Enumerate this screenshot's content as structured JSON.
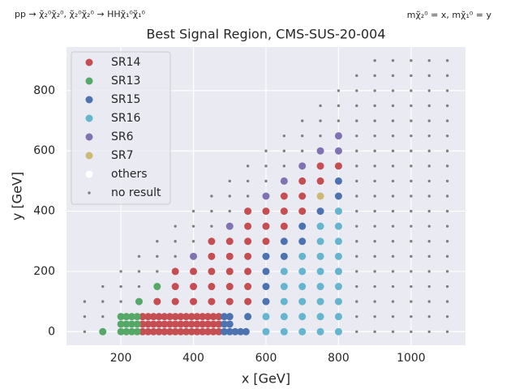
{
  "chart_data": {
    "type": "scatter",
    "title": "Best Signal Region, CMS-SUS-20-004",
    "annotation_left": "pp → χ̃₂⁰χ̃₂⁰, χ̃₂⁰χ̃₂⁰ → HHχ̃₁⁰χ̃₁⁰",
    "annotation_right": "mχ̃₂⁰ = x, mχ̃₁⁰ = y",
    "x_label": "x [GeV]",
    "y_label": "y [GeV]",
    "xlim": [
      50,
      1150
    ],
    "ylim": [
      -45,
      945
    ],
    "xticks": [
      200,
      400,
      600,
      800,
      1000
    ],
    "yticks": [
      0,
      200,
      400,
      600,
      800
    ],
    "grid": true,
    "legend": "upper left",
    "series": [
      {
        "name": "SR14",
        "color": "#c44e52",
        "marker_size": 4.5,
        "x": [
          300,
          350,
          400,
          450,
          500,
          550,
          350,
          400,
          450,
          500,
          550,
          350,
          400,
          450,
          500,
          550,
          450,
          500,
          550,
          450,
          500,
          550,
          600,
          550,
          600,
          650,
          550,
          600,
          650,
          700,
          650,
          700,
          700,
          750,
          750,
          800,
          260,
          275,
          290,
          305,
          320,
          335,
          350,
          365,
          380,
          395,
          410,
          425,
          440,
          455,
          470,
          260,
          275,
          290,
          305,
          320,
          335,
          350,
          365,
          380,
          395,
          410,
          425,
          440,
          455,
          470,
          260,
          275,
          290,
          305,
          320,
          335,
          350,
          365,
          380,
          395,
          410,
          425,
          440,
          455,
          470
        ],
        "y": [
          100,
          100,
          100,
          100,
          100,
          100,
          150,
          150,
          150,
          150,
          150,
          200,
          200,
          200,
          200,
          200,
          250,
          250,
          250,
          300,
          300,
          300,
          300,
          350,
          350,
          350,
          400,
          400,
          400,
          400,
          450,
          450,
          500,
          500,
          550,
          550,
          0,
          0,
          0,
          0,
          0,
          0,
          0,
          0,
          0,
          0,
          0,
          0,
          0,
          0,
          0,
          25,
          25,
          25,
          25,
          25,
          25,
          25,
          25,
          25,
          25,
          25,
          25,
          25,
          25,
          25,
          50,
          50,
          50,
          50,
          50,
          50,
          50,
          50,
          50,
          50,
          50,
          50,
          50,
          50,
          50
        ]
      },
      {
        "name": "SR13",
        "color": "#55a868",
        "marker_size": 4.5,
        "x": [
          150,
          250,
          300,
          200,
          215,
          230,
          245,
          200,
          215,
          230,
          245,
          200,
          215,
          230,
          245
        ],
        "y": [
          0,
          100,
          150,
          0,
          0,
          0,
          0,
          25,
          25,
          25,
          25,
          50,
          50,
          50,
          50
        ]
      },
      {
        "name": "SR15",
        "color": "#4c72b0",
        "marker_size": 4.5,
        "x": [
          550,
          600,
          600,
          600,
          600,
          650,
          650,
          700,
          700,
          750,
          800,
          800,
          485,
          500,
          485,
          500,
          485,
          500,
          515,
          530,
          545
        ],
        "y": [
          50,
          100,
          150,
          200,
          250,
          250,
          300,
          300,
          350,
          400,
          450,
          500,
          0,
          0,
          25,
          25,
          50,
          50,
          0,
          0,
          0
        ]
      },
      {
        "name": "SR16",
        "color": "#64b5cd",
        "marker_size": 4.5,
        "x": [
          600,
          650,
          700,
          750,
          800,
          600,
          650,
          700,
          750,
          800,
          650,
          700,
          750,
          800,
          650,
          700,
          750,
          800,
          650,
          700,
          750,
          800,
          700,
          750,
          800,
          750,
          800,
          750,
          800,
          800
        ],
        "y": [
          0,
          0,
          0,
          0,
          0,
          50,
          50,
          50,
          50,
          50,
          100,
          100,
          100,
          100,
          150,
          150,
          150,
          150,
          200,
          200,
          200,
          200,
          250,
          250,
          250,
          300,
          300,
          350,
          350,
          400
        ]
      },
      {
        "name": "SR6",
        "color": "#8172b2",
        "marker_size": 4.5,
        "x": [
          400,
          500,
          600,
          650,
          700,
          750,
          800,
          800
        ],
        "y": [
          250,
          350,
          450,
          500,
          550,
          600,
          600,
          650
        ]
      },
      {
        "name": "SR7",
        "color": "#ccb974",
        "marker_size": 4.5,
        "x": [
          750
        ],
        "y": [
          450
        ]
      },
      {
        "name": "others",
        "color": "#ffffff",
        "marker_size": 4.5,
        "x": [],
        "y": []
      },
      {
        "name": "no result",
        "color": "#808080",
        "marker_size": 1.7,
        "x": [
          100,
          100,
          100,
          150,
          150,
          150,
          200,
          200,
          200,
          250,
          250,
          250,
          300,
          300,
          300,
          350,
          350,
          350,
          400,
          400,
          400,
          450,
          450,
          450,
          500,
          500,
          500,
          550,
          550,
          550,
          600,
          600,
          600,
          650,
          650,
          650,
          700,
          700,
          700,
          750,
          750,
          750,
          800,
          800,
          800,
          850,
          850,
          850,
          850,
          850,
          850,
          850,
          850,
          850,
          850,
          850,
          850,
          850,
          850,
          850,
          850,
          850,
          850,
          900,
          900,
          900,
          900,
          900,
          900,
          900,
          900,
          900,
          900,
          900,
          900,
          900,
          900,
          900,
          900,
          900,
          900,
          900,
          950,
          950,
          950,
          950,
          950,
          950,
          950,
          950,
          950,
          950,
          950,
          950,
          950,
          950,
          950,
          950,
          950,
          950,
          950,
          1000,
          1000,
          1000,
          1000,
          1000,
          1000,
          1000,
          1000,
          1000,
          1000,
          1000,
          1000,
          1000,
          1000,
          1000,
          1000,
          1000,
          1000,
          1000,
          1050,
          1050,
          1050,
          1050,
          1050,
          1050,
          1050,
          1050,
          1050,
          1050,
          1050,
          1050,
          1050,
          1050,
          1050,
          1050,
          1050,
          1050,
          1050,
          1100,
          1100,
          1100,
          1100,
          1100,
          1100,
          1100,
          1100,
          1100,
          1100,
          1100,
          1100,
          1100,
          1100,
          1100,
          1100,
          1100,
          1100,
          1100
        ],
        "y": [
          0,
          50,
          100,
          50,
          100,
          150,
          100,
          150,
          200,
          150,
          200,
          250,
          200,
          250,
          300,
          250,
          300,
          350,
          300,
          350,
          400,
          350,
          400,
          450,
          400,
          450,
          500,
          450,
          500,
          550,
          500,
          550,
          600,
          550,
          600,
          650,
          600,
          650,
          700,
          650,
          700,
          750,
          700,
          750,
          800,
          0,
          50,
          100,
          150,
          200,
          250,
          300,
          350,
          400,
          450,
          500,
          550,
          600,
          650,
          700,
          750,
          800,
          850,
          0,
          50,
          100,
          150,
          200,
          250,
          300,
          350,
          400,
          450,
          500,
          550,
          600,
          650,
          700,
          750,
          800,
          850,
          900,
          0,
          50,
          100,
          150,
          200,
          250,
          300,
          350,
          400,
          450,
          500,
          550,
          600,
          650,
          700,
          750,
          800,
          850,
          900,
          0,
          50,
          100,
          150,
          200,
          250,
          300,
          350,
          400,
          450,
          500,
          550,
          600,
          650,
          700,
          750,
          800,
          850,
          900,
          0,
          50,
          100,
          150,
          200,
          250,
          300,
          350,
          400,
          450,
          500,
          550,
          600,
          650,
          700,
          750,
          800,
          850,
          900,
          0,
          50,
          100,
          150,
          200,
          250,
          300,
          350,
          400,
          450,
          500,
          550,
          600,
          650,
          700,
          750,
          800,
          850,
          900
        ]
      }
    ]
  }
}
